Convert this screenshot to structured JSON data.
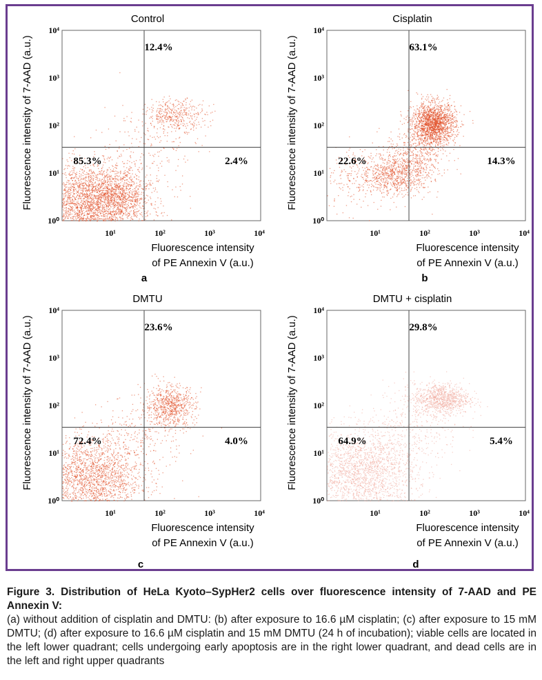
{
  "chart_data": [
    {
      "type": "scatter",
      "title": "Control",
      "xlabel": [
        "Fluorescence intensity",
        "of PE Annexin V (a.u.)"
      ],
      "ylabel": "Fluorescence intensity of 7-AAD (a.u.)",
      "x_scale": "log",
      "y_scale": "log",
      "xlim": [
        1,
        10000
      ],
      "ylim": [
        1,
        10000
      ],
      "x_ticks": [
        "10¹",
        "10²",
        "10³",
        "10⁴"
      ],
      "y_ticks": [
        "10⁰",
        "10¹",
        "10²",
        "10³",
        "10⁴"
      ],
      "gates": {
        "x": 45,
        "y": 35
      },
      "quadrants": {
        "upper": "12.4%",
        "lower_left": "85.3%",
        "lower_right": "2.4%"
      },
      "populations": [
        {
          "x": 3,
          "y": 2,
          "sx": 0.55,
          "sy": 0.45,
          "n": 2600
        },
        {
          "x": 12,
          "y": 3.5,
          "sx": 0.35,
          "sy": 0.3,
          "n": 900
        },
        {
          "x": 200,
          "y": 170,
          "sx": 0.3,
          "sy": 0.16,
          "n": 380
        },
        {
          "x": 60,
          "y": 40,
          "sx": 0.5,
          "sy": 0.5,
          "n": 200
        }
      ],
      "color": "#e0451c",
      "panel_label": "a"
    },
    {
      "type": "scatter",
      "title": "Cisplatin",
      "xlabel": [
        "Fluorescence intensity",
        "of PE Annexin V (a.u.)"
      ],
      "ylabel": "Fluorescence intensity of 7-AAD (a.u.)",
      "x_scale": "log",
      "y_scale": "log",
      "xlim": [
        1,
        10000
      ],
      "ylim": [
        1,
        10000
      ],
      "x_ticks": [
        "10¹",
        "10²",
        "10³",
        "10⁴"
      ],
      "y_ticks": [
        "10⁰",
        "10¹",
        "10²",
        "10³",
        "10⁴"
      ],
      "gates": {
        "x": 45,
        "y": 35
      },
      "quadrants": {
        "upper": "63.1%",
        "lower_left": "22.6%",
        "lower_right": "14.3%"
      },
      "populations": [
        {
          "x": 140,
          "y": 110,
          "sx": 0.22,
          "sy": 0.22,
          "n": 1700
        },
        {
          "x": 25,
          "y": 10,
          "sx": 0.35,
          "sy": 0.22,
          "n": 750
        },
        {
          "x": 60,
          "y": 25,
          "sx": 0.3,
          "sy": 0.3,
          "n": 350
        },
        {
          "x": 5,
          "y": 8,
          "sx": 0.5,
          "sy": 0.35,
          "n": 250
        }
      ],
      "color": "#e0451c",
      "panel_label": "b"
    },
    {
      "type": "scatter",
      "title": "DMTU",
      "xlabel": [
        "Fluorescence intensity",
        "of PE Annexin V (a.u.)"
      ],
      "ylabel": "Fluorescence intensity of 7-AAD (a.u.)",
      "x_scale": "log",
      "y_scale": "log",
      "xlim": [
        1,
        10000
      ],
      "ylim": [
        1,
        10000
      ],
      "x_ticks": [
        "10¹",
        "10²",
        "10³",
        "10⁴"
      ],
      "y_ticks": [
        "10⁰",
        "10¹",
        "10²",
        "10³",
        "10⁴"
      ],
      "gates": {
        "x": 45,
        "y": 35
      },
      "quadrants": {
        "upper": "23.6%",
        "lower_left": "72.4%",
        "lower_right": "4.0%"
      },
      "populations": [
        {
          "x": 4,
          "y": 3,
          "sx": 0.5,
          "sy": 0.42,
          "n": 1900
        },
        {
          "x": 150,
          "y": 100,
          "sx": 0.25,
          "sy": 0.22,
          "n": 700
        },
        {
          "x": 40,
          "y": 25,
          "sx": 0.45,
          "sy": 0.4,
          "n": 250
        }
      ],
      "color": "#e0451c",
      "panel_label": "c"
    },
    {
      "type": "scatter",
      "title": "DMTU + cisplatin",
      "xlabel": [
        "Fluorescence intensity",
        "of PE Annexin V (a.u.)"
      ],
      "ylabel": "Fluorescence intensity of 7-AAD (a.u.)",
      "x_scale": "log",
      "y_scale": "log",
      "xlim": [
        1,
        10000
      ],
      "ylim": [
        1,
        10000
      ],
      "x_ticks": [
        "10¹",
        "10²",
        "10³",
        "10⁴"
      ],
      "y_ticks": [
        "10⁰",
        "10¹",
        "10²",
        "10³",
        "10⁴"
      ],
      "gates": {
        "x": 45,
        "y": 35
      },
      "quadrants": {
        "upper": "29.8%",
        "lower_left": "64.9%",
        "lower_right": "5.4%"
      },
      "populations": [
        {
          "x": 5,
          "y": 4,
          "sx": 0.55,
          "sy": 0.45,
          "n": 2000
        },
        {
          "x": 200,
          "y": 140,
          "sx": 0.28,
          "sy": 0.16,
          "n": 900
        },
        {
          "x": 60,
          "y": 40,
          "sx": 0.45,
          "sy": 0.45,
          "n": 300
        }
      ],
      "color": "#f0a79a",
      "panel_label": "d"
    }
  ],
  "caption": {
    "title": "Figure 3. Distribution of HeLa Kyoto–SypHer2 cells over fluorescence intensity of 7-AAD and PE Annexin V:",
    "body": "(a) without addition of cisplatin and DMTU: (b) after exposure to 16.6 µM cisplatin; (c) after exposure to 15 mM DMTU; (d) after exposure to 16.6 µM cisplatin and 15 mM DMTU (24 h of incubation); viable cells are located in the left lower quadrant; cells undergoing early apoptosis are in the right lower quadrant, and dead cells are in the left and right upper quadrants"
  },
  "colors": {
    "frame": "#6a3d8f",
    "axes": "#444444"
  }
}
